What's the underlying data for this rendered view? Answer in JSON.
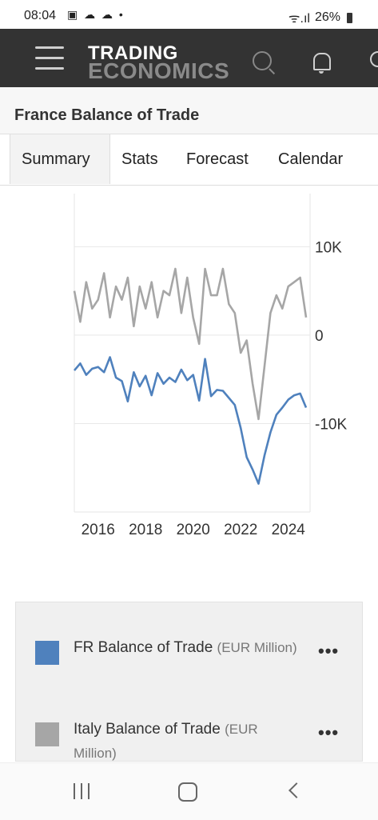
{
  "status_bar": {
    "time": "08:04",
    "icons": "▣ ☁ ☁ •",
    "signal": "ᯤ.ıl",
    "battery": "26%"
  },
  "header": {
    "logo_line1": "TRADING",
    "logo_line2": "ECONOMICS"
  },
  "page_title": "France Balance of Trade",
  "tabs": [
    "Summary",
    "Stats",
    "Forecast",
    "Calendar"
  ],
  "colors": {
    "fr": "#4f81bd",
    "italy": "#a6a6a6",
    "header": "#333333"
  },
  "chart_data": {
    "type": "line",
    "title": "",
    "xlabel": "",
    "ylabel": "",
    "x_ticks": [
      "2016",
      "2018",
      "2020",
      "2022",
      "2024"
    ],
    "y_ticks": [
      "10K",
      "0",
      "-10K"
    ],
    "x_range": [
      "2015-01",
      "2024-12"
    ],
    "ylim": [
      -20000,
      16000
    ],
    "series": [
      {
        "name": "FR Balance of Trade",
        "color": "#4f81bd",
        "x": [
          "2015-01",
          "2015-04",
          "2015-07",
          "2015-10",
          "2016-01",
          "2016-04",
          "2016-07",
          "2016-10",
          "2017-01",
          "2017-04",
          "2017-07",
          "2017-10",
          "2018-01",
          "2018-04",
          "2018-07",
          "2018-10",
          "2019-01",
          "2019-04",
          "2019-07",
          "2019-10",
          "2020-01",
          "2020-04",
          "2020-07",
          "2020-10",
          "2021-01",
          "2021-04",
          "2021-07",
          "2021-10",
          "2022-01",
          "2022-04",
          "2022-07",
          "2022-10",
          "2023-01",
          "2023-04",
          "2023-07",
          "2023-10",
          "2024-01",
          "2024-04",
          "2024-07",
          "2024-10"
        ],
        "values": [
          -4000,
          -3200,
          -4500,
          -3800,
          -3600,
          -4200,
          -2500,
          -4800,
          -5200,
          -7500,
          -4200,
          -5800,
          -4600,
          -6800,
          -4300,
          -5500,
          -4800,
          -5300,
          -3900,
          -5100,
          -4500,
          -7400,
          -2700,
          -6900,
          -6200,
          -6300,
          -7100,
          -7900,
          -10500,
          -13800,
          -15200,
          -16800,
          -13600,
          -11000,
          -9000,
          -8200,
          -7300,
          -6800,
          -6600,
          -8200
        ]
      },
      {
        "name": "Italy Balance of Trade",
        "color": "#a6a6a6",
        "x": [
          "2015-01",
          "2015-04",
          "2015-07",
          "2015-10",
          "2016-01",
          "2016-04",
          "2016-07",
          "2016-10",
          "2017-01",
          "2017-04",
          "2017-07",
          "2017-10",
          "2018-01",
          "2018-04",
          "2018-07",
          "2018-10",
          "2019-01",
          "2019-04",
          "2019-07",
          "2019-10",
          "2020-01",
          "2020-04",
          "2020-07",
          "2020-10",
          "2021-01",
          "2021-04",
          "2021-07",
          "2021-10",
          "2022-01",
          "2022-04",
          "2022-07",
          "2022-10",
          "2023-01",
          "2023-04",
          "2023-07",
          "2023-10",
          "2024-01",
          "2024-04",
          "2024-07",
          "2024-10"
        ],
        "values": [
          5000,
          1500,
          6000,
          3000,
          4000,
          7000,
          2000,
          5500,
          4000,
          6500,
          1000,
          5500,
          3000,
          6000,
          2000,
          5000,
          4500,
          7500,
          2500,
          6500,
          2000,
          -1000,
          7500,
          4500,
          4500,
          7500,
          3500,
          2500,
          -2000,
          -600,
          -5500,
          -9500,
          -3500,
          2500,
          4500,
          3000,
          5500,
          6000,
          6500,
          2000
        ]
      }
    ]
  },
  "legend": {
    "items": [
      {
        "label": "FR Balance of Trade",
        "unit": "(EUR Million)"
      },
      {
        "label": "Italy Balance of Trade",
        "unit": "(EUR Million)"
      }
    ]
  }
}
